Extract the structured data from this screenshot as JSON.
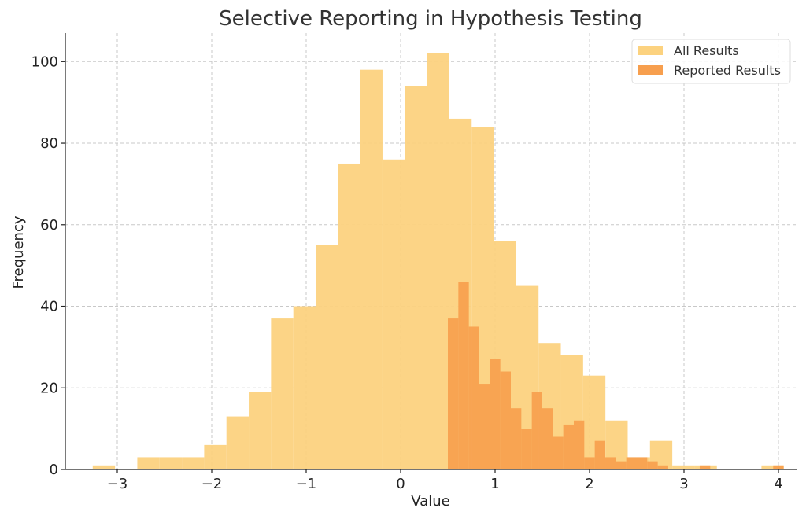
{
  "chart_data": {
    "type": "bar",
    "title": "Selective Reporting in Hypothesis Testing",
    "xlabel": "Value",
    "ylabel": "Frequency",
    "xlim": [
      -3.55,
      4.2
    ],
    "ylim": [
      0,
      107
    ],
    "x_ticks": [
      {
        "value": -3,
        "label": "−3"
      },
      {
        "value": -2,
        "label": "−2"
      },
      {
        "value": -1,
        "label": "−1"
      },
      {
        "value": 0,
        "label": "0"
      },
      {
        "value": 1,
        "label": "1"
      },
      {
        "value": 2,
        "label": "2"
      },
      {
        "value": 3,
        "label": "3"
      },
      {
        "value": 4,
        "label": "4"
      }
    ],
    "y_ticks": [
      {
        "value": 0,
        "label": "0"
      },
      {
        "value": 20,
        "label": "20"
      },
      {
        "value": 40,
        "label": "40"
      },
      {
        "value": 60,
        "label": "60"
      },
      {
        "value": 80,
        "label": "80"
      },
      {
        "value": 100,
        "label": "100"
      }
    ],
    "grid": true,
    "legend_position": "top-right",
    "series": [
      {
        "name": "All Results",
        "color": "#fcd27f",
        "bin_start": -3.26,
        "bin_width": 0.236,
        "counts": [
          1,
          0,
          3,
          3,
          3,
          6,
          13,
          19,
          37,
          40,
          55,
          75,
          98,
          76,
          94,
          102,
          86,
          84,
          56,
          45,
          31,
          28,
          23,
          12,
          3,
          7,
          1,
          1,
          0,
          0,
          1
        ]
      },
      {
        "name": "Reported Results",
        "color": "#f79f4e",
        "bin_start": 0.5,
        "bin_width": 0.1111,
        "counts": [
          37,
          46,
          35,
          21,
          27,
          24,
          15,
          10,
          19,
          15,
          8,
          11,
          12,
          3,
          7,
          3,
          2,
          3,
          3,
          2,
          1,
          0,
          0,
          0,
          1,
          0,
          0,
          0,
          0,
          0,
          0,
          1
        ]
      }
    ]
  }
}
